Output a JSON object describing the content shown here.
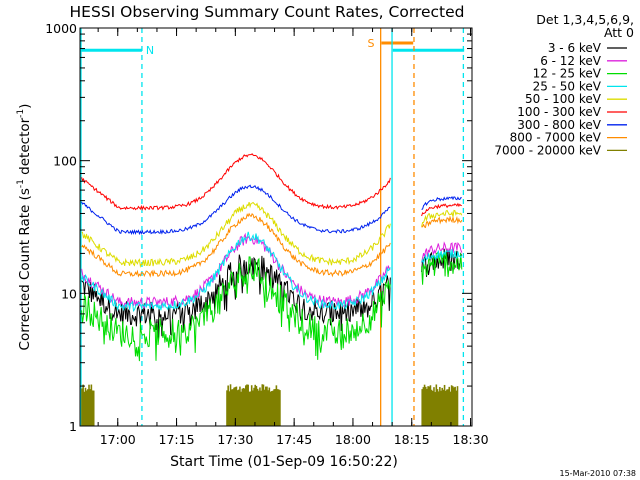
{
  "chart_data": {
    "type": "line",
    "title": "HESSI Observing Summary Count Rates, Corrected",
    "xlabel": "Start Time (01-Sep-09 16:50:22)",
    "ylabel": "Corrected Count Rate (s",
    "ylabel_sup1": "-1",
    "ylabel_mid": " detector",
    "ylabel_sup2": "-1",
    "ylabel_end": ")",
    "yscale": "log",
    "ylim": [
      1,
      1000
    ],
    "xlim_minutes": [
      0,
      100
    ],
    "x_ticks": [
      {
        "label": "17:00",
        "min": 9.63
      },
      {
        "label": "17:15",
        "min": 24.63
      },
      {
        "label": "17:30",
        "min": 39.63
      },
      {
        "label": "17:45",
        "min": 54.63
      },
      {
        "label": "18:00",
        "min": 69.63
      },
      {
        "label": "18:15",
        "min": 84.63
      },
      {
        "label": "18:30",
        "min": 99.63
      }
    ],
    "y_ticks": [
      {
        "label": "1",
        "value": 1
      },
      {
        "label": "10",
        "value": 10
      },
      {
        "label": "100",
        "value": 100
      },
      {
        "label": "1000",
        "value": 1000
      }
    ],
    "legend": {
      "header_line1": "Det 1,3,4,5,6,9,",
      "header_line2": "Att 0",
      "placement": "right"
    },
    "series": [
      {
        "name": "3 - 6 keV",
        "color": "#000000",
        "base": 7.0,
        "peak": 17,
        "end": 12.5,
        "post": 18,
        "noise": 0.22,
        "dropouts": true
      },
      {
        "name": "6 - 12 keV",
        "color": "#dd22dd",
        "base": 8.5,
        "peak": 26,
        "end": 17,
        "post": 22,
        "noise": 0.1,
        "dropouts": false
      },
      {
        "name": "12 - 25 keV",
        "color": "#00dd00",
        "base": 5.0,
        "peak": 15,
        "end": 12,
        "post": 17,
        "noise": 0.25,
        "dropouts": true
      },
      {
        "name": "25 - 50 keV",
        "color": "#00e5ee",
        "base": 8.0,
        "peak": 27,
        "end": 16.5,
        "post": 20,
        "noise": 0.08,
        "dropouts": false
      },
      {
        "name": "50 - 100 keV",
        "color": "#dddd00",
        "base": 17,
        "peak": 46,
        "end": 35,
        "post": 40,
        "noise": 0.06,
        "dropouts": false
      },
      {
        "name": "100 - 300 keV",
        "color": "#ff0000",
        "base": 44,
        "peak": 110,
        "end": 75,
        "post": 46,
        "noise": 0.03,
        "dropouts": false
      },
      {
        "name": "300 - 800 keV",
        "color": "#0022ee",
        "base": 29,
        "peak": 64,
        "end": 46,
        "post": 52,
        "noise": 0.03,
        "dropouts": false
      },
      {
        "name": "800 - 7000 keV",
        "color": "#ff8c00",
        "base": 14,
        "peak": 38,
        "end": 25,
        "post": 36,
        "noise": 0.05,
        "dropouts": false
      },
      {
        "name": "7000 - 20000 keV",
        "color": "#808000",
        "base": 1.0,
        "peak": 1.0,
        "end": 1.0,
        "post": 1.0,
        "noise": 0,
        "dropouts": false
      }
    ],
    "flag_bars": [
      {
        "label": "N",
        "color": "#00e5ee",
        "value": 680,
        "segments": [
          [
            0,
            15.8
          ],
          [
            79.8,
            98.0
          ]
        ]
      },
      {
        "label": "S",
        "color": "#ff8c00",
        "value": 770,
        "segments": [
          [
            76.9,
            85.0
          ]
        ]
      }
    ],
    "markers": [
      {
        "color": "#00e5ee",
        "min": 15.8,
        "style": "dashed"
      },
      {
        "color": "#00e5ee",
        "min": 79.6,
        "style": "solid"
      },
      {
        "color": "#00e5ee",
        "min": 97.8,
        "style": "dashed"
      },
      {
        "color": "#ff8c00",
        "min": 76.7,
        "style": "solid"
      },
      {
        "color": "#ff8c00",
        "min": 85.2,
        "style": "dashed"
      }
    ],
    "gap_minutes": [
      79.6,
      87.0
    ],
    "bursts_7000_20000": [
      {
        "from": 0.5,
        "to": 3.5
      },
      {
        "from": 37.5,
        "to": 51.0
      },
      {
        "from": 87.3,
        "to": 96.5
      }
    ],
    "burst_level": 2.0
  },
  "timestamp": "15-Mar-2010 07:38"
}
